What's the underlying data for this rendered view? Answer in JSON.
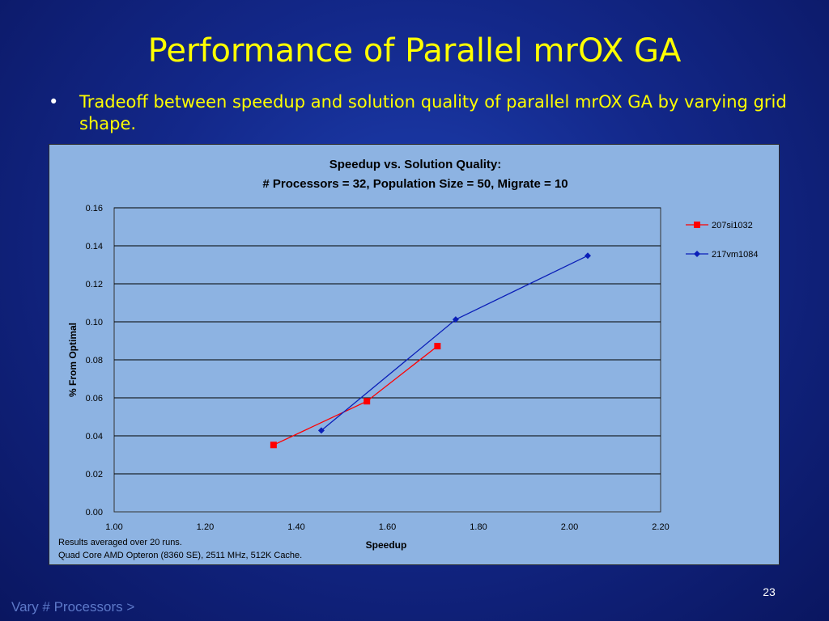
{
  "slide": {
    "title": "Performance of Parallel mrOX GA",
    "bullet_symbol": "•",
    "bullet_text": "Tradeoff between speedup and solution quality of parallel mrOX GA by varying grid shape.",
    "slide_number": "23",
    "footer_link": "Vary # Processors >"
  },
  "chart_data": {
    "type": "line",
    "title": "Speedup vs. Solution Quality:",
    "subtitle": "# Processors = 32, Population Size = 50, Migrate = 10",
    "xlabel": "Speedup",
    "ylabel": "% From Optimal",
    "xlim": [
      1.0,
      2.2
    ],
    "ylim": [
      0.0,
      0.16
    ],
    "x_ticks": [
      "1.00",
      "1.20",
      "1.40",
      "1.60",
      "1.80",
      "2.00",
      "2.20"
    ],
    "y_ticks": [
      "0.00",
      "0.02",
      "0.04",
      "0.06",
      "0.08",
      "0.10",
      "0.12",
      "0.14",
      "0.16"
    ],
    "grid": "horizontal",
    "legend_position": "right",
    "notes": [
      "Results averaged over 20 runs.",
      "Quad Core AMD Opteron (8360 SE), 2511 MHz, 512K Cache."
    ],
    "series": [
      {
        "name": "207si1032",
        "color": "#ff0000",
        "marker": "square",
        "x": [
          1.35,
          1.555,
          1.71
        ],
        "y": [
          0.0352,
          0.0582,
          0.0872
        ]
      },
      {
        "name": "217vm1084",
        "color": "#0b1fb8",
        "marker": "diamond",
        "x": [
          1.455,
          1.75,
          2.04
        ],
        "y": [
          0.0428,
          0.1012,
          0.1348
        ]
      }
    ]
  }
}
